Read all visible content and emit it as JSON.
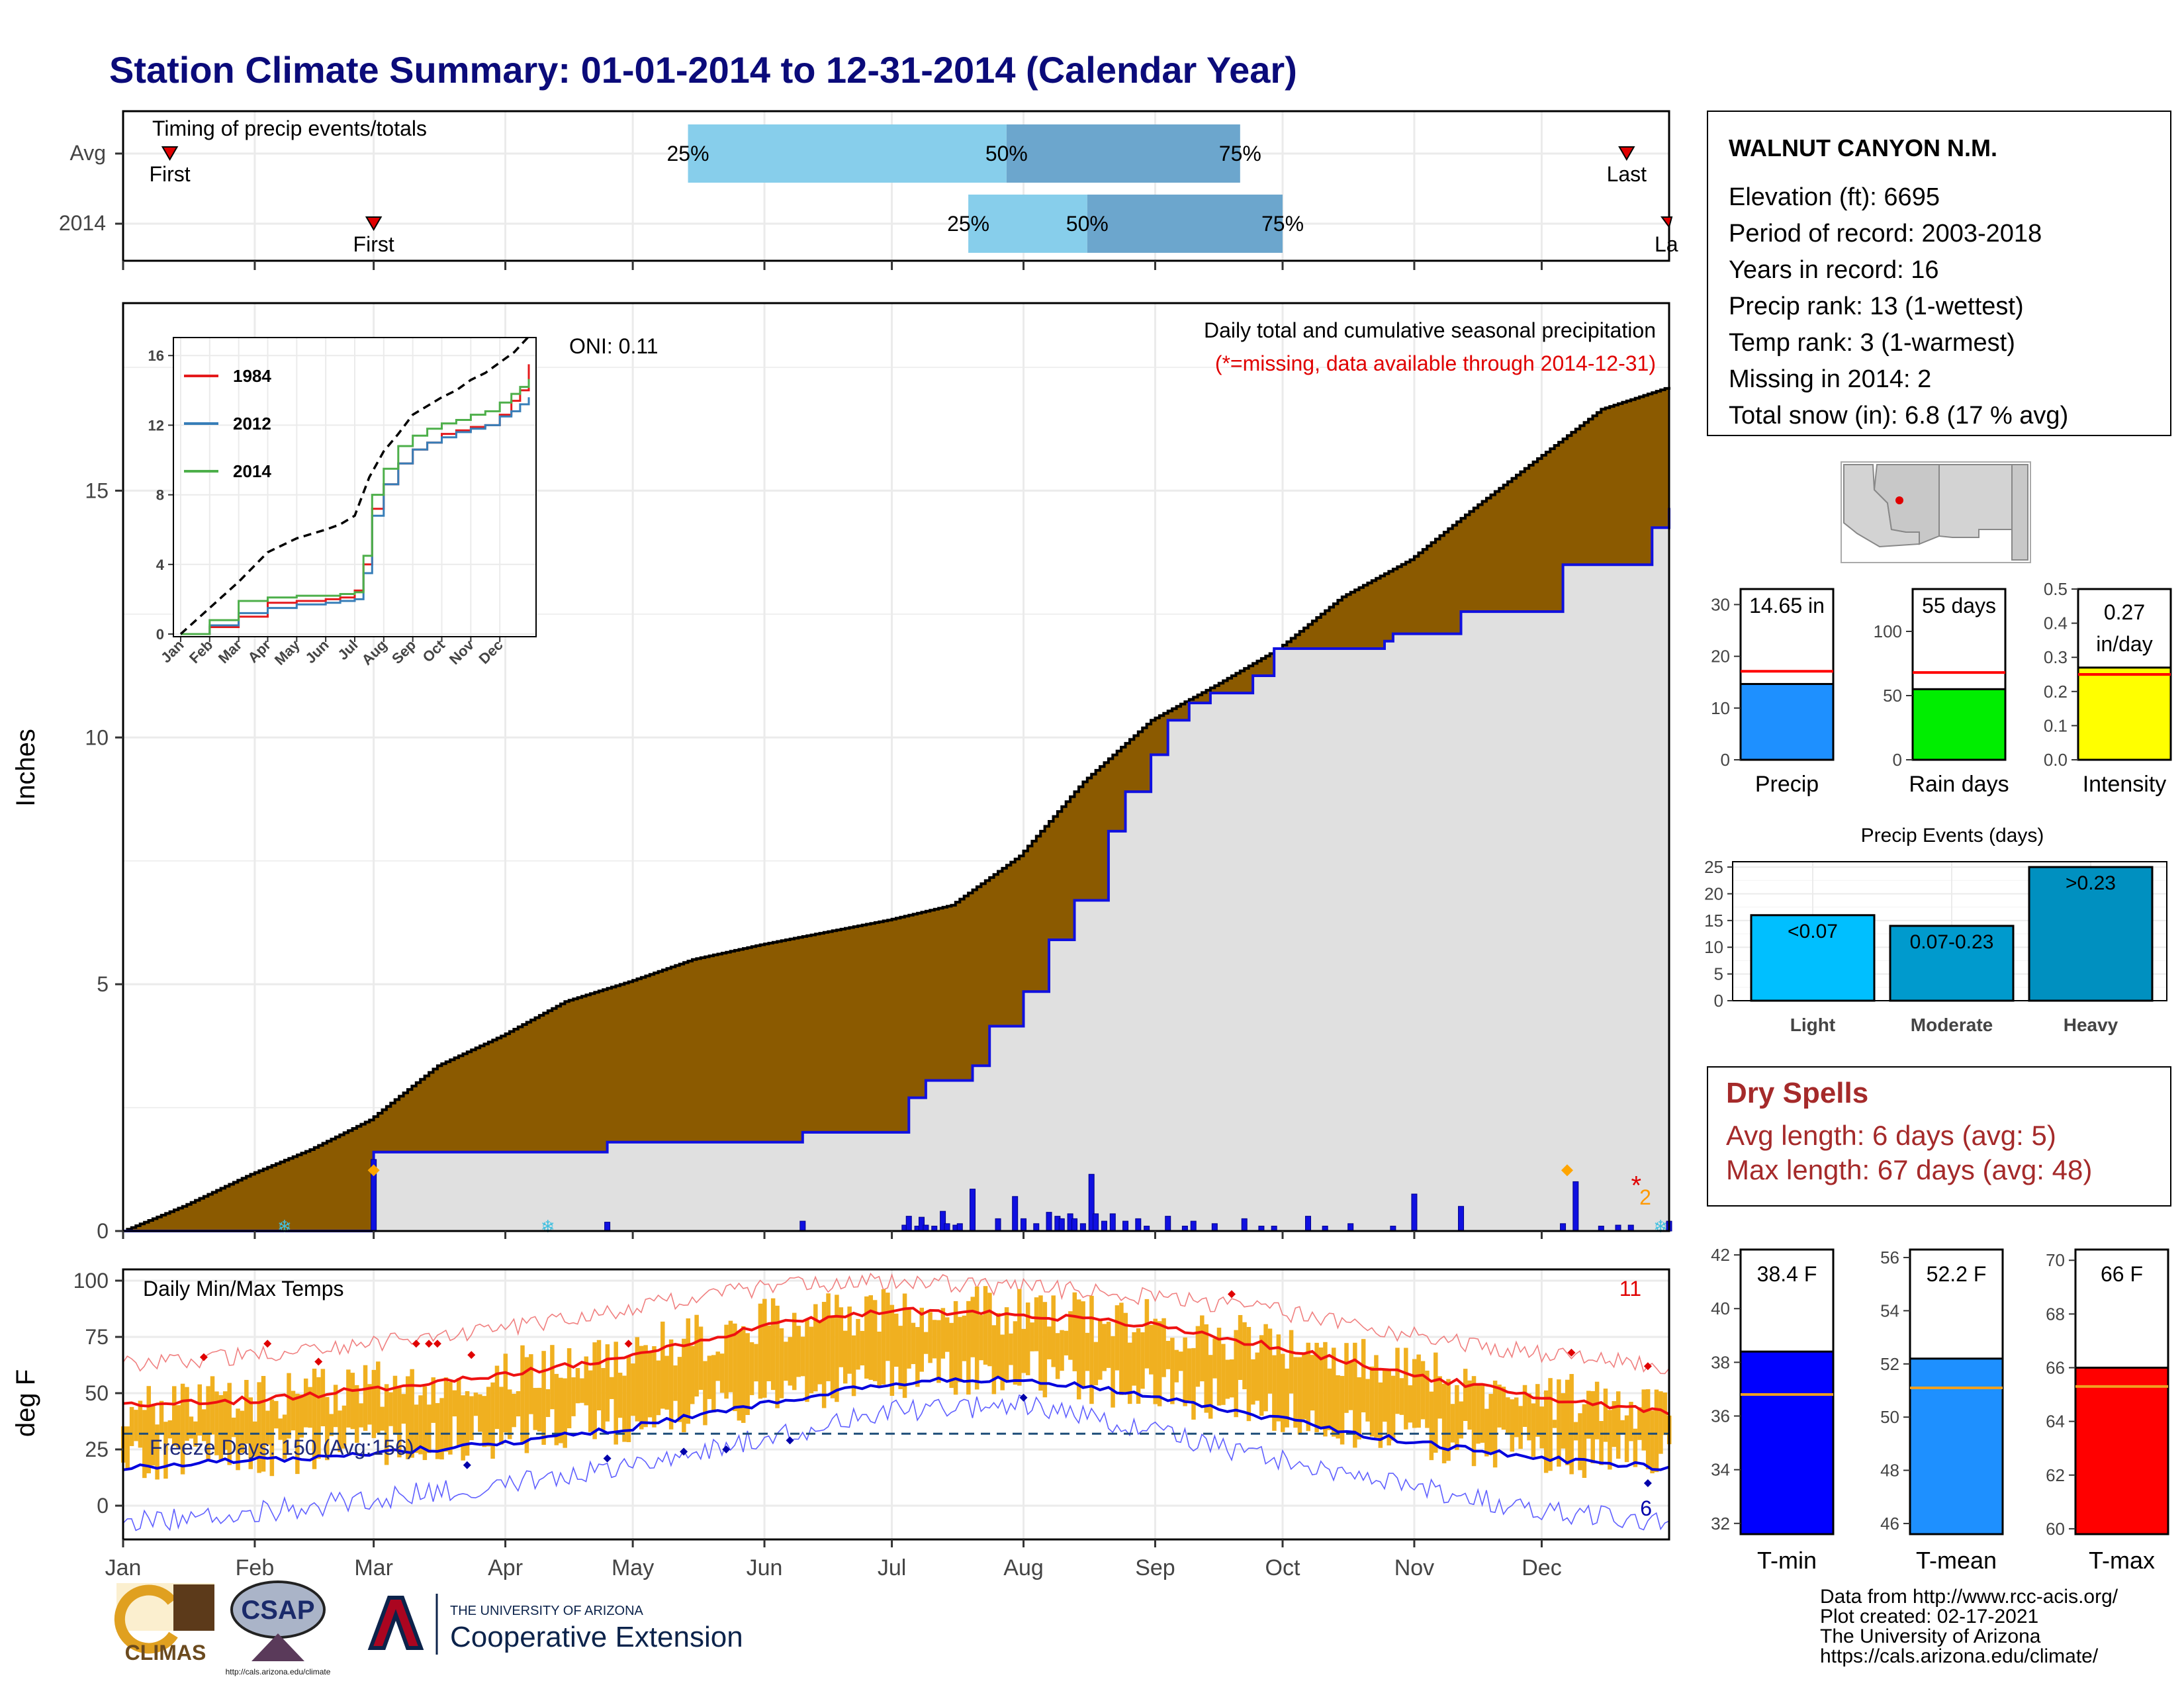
{
  "page": {
    "title": "Station Climate Summary: 01-01-2014 to 12-31-2014 (Calendar Year)"
  },
  "timing": {
    "label": "Timing of precip events/totals",
    "rows": [
      {
        "label": "Avg",
        "first_doy": 12,
        "last_doy": 355,
        "p25_doy": 134,
        "p50_doy": 209,
        "p75_doy": 264
      },
      {
        "label": "2014",
        "first_doy": 60,
        "last_doy": 365,
        "p25_doy": 200,
        "p50_doy": 228,
        "p75_doy": 274
      }
    ],
    "first_label": "First",
    "last_label": "Last",
    "last_label_clipped": "La",
    "p25_label": "25%",
    "p50_label": "50%",
    "p75_label": "75%",
    "colors": {
      "light": "#87ceeb",
      "dark": "#6ca6cd",
      "marker": "#e00000"
    }
  },
  "precip_panel": {
    "ylabel": "Inches",
    "y_ticks": [
      0,
      5,
      10,
      15
    ],
    "ylim": [
      0,
      18.8
    ],
    "oni": "ONI: 0.11",
    "title": "Daily total and cumulative seasonal precipitation",
    "missing_note": "(*=missing, data available through 2014-12-31)",
    "missing_count": "2",
    "colors": {
      "avg_fill": "#8b5a00",
      "obs_fill": "#e0e0e0",
      "obs_line": "#1010e0",
      "bars": "#1010e0",
      "missing": "#e00000",
      "missing_count": "#ff9900"
    }
  },
  "chart_data": [
    {
      "type": "area",
      "name": "cumulative_precip",
      "x_unit": "day of year",
      "ylabel": "Inches",
      "ylim": [
        0,
        18.8
      ],
      "average_cumulative": {
        "x": [
          1,
          15,
          31,
          45,
          59,
          75,
          90,
          105,
          120,
          135,
          151,
          166,
          181,
          196,
          212,
          227,
          243,
          258,
          273,
          288,
          304,
          319,
          334,
          349,
          365
        ],
        "y": [
          0,
          0.5,
          1.15,
          1.65,
          2.25,
          3.35,
          3.95,
          4.65,
          5.05,
          5.5,
          5.8,
          6.05,
          6.3,
          6.6,
          7.6,
          9.1,
          10.35,
          11.05,
          11.8,
          12.85,
          13.6,
          14.65,
          15.65,
          16.65,
          17.1
        ]
      },
      "observed_2014_cumulative": {
        "x": [
          1,
          59,
          60,
          114,
          115,
          160,
          161,
          181,
          186,
          190,
          201,
          205,
          213,
          219,
          225,
          233,
          237,
          243,
          247,
          252,
          257,
          267,
          272,
          298,
          300,
          316,
          340,
          361,
          365
        ],
        "y": [
          0,
          0,
          1.6,
          1.6,
          1.8,
          1.8,
          2.0,
          2.0,
          2.7,
          3.05,
          3.35,
          4.15,
          4.85,
          5.9,
          6.7,
          8.1,
          8.9,
          9.65,
          10.35,
          10.7,
          10.9,
          11.25,
          11.8,
          11.95,
          12.1,
          12.55,
          13.5,
          14.25,
          14.65
        ]
      },
      "daily_bars": {
        "x": [
          60,
          115,
          161,
          185,
          186,
          188,
          189,
          190,
          192,
          194,
          195,
          197,
          198,
          201,
          207,
          211,
          213,
          216,
          219,
          221,
          222,
          224,
          225,
          227,
          229,
          230,
          232,
          234,
          237,
          240,
          242,
          247,
          251,
          253,
          258,
          265,
          269,
          272,
          280,
          284,
          290,
          300,
          305,
          316,
          340,
          343,
          349,
          353,
          356,
          365
        ],
        "y": [
          1.45,
          0.18,
          0.2,
          0.12,
          0.3,
          0.1,
          0.28,
          0.12,
          0.1,
          0.4,
          0.15,
          0.12,
          0.15,
          0.85,
          0.25,
          0.7,
          0.25,
          0.15,
          0.38,
          0.3,
          0.25,
          0.35,
          0.25,
          0.15,
          1.15,
          0.35,
          0.2,
          0.35,
          0.2,
          0.25,
          0.1,
          0.3,
          0.1,
          0.2,
          0.15,
          0.25,
          0.1,
          0.1,
          0.3,
          0.1,
          0.15,
          0.1,
          0.75,
          0.5,
          0.15,
          1.0,
          0.1,
          0.12,
          0.12,
          0.2
        ]
      },
      "markers": {
        "diamond_doy": [
          60,
          341
        ],
        "snow_doy": [
          39,
          101,
          363
        ],
        "missing_doy": [
          356
        ]
      }
    },
    {
      "type": "line",
      "name": "inset_cumulative",
      "x_ticks": [
        "Jan",
        "Feb",
        "Mar",
        "Apr",
        "May",
        "Jun",
        "Jul",
        "Aug",
        "Sep",
        "Oct",
        "Nov",
        "Dec"
      ],
      "y_ticks": [
        0,
        4,
        8,
        12,
        16
      ],
      "ylim": [
        0,
        16.5
      ],
      "series": [
        {
          "name": "1984",
          "color": "#e41a1c",
          "x": [
            0,
            1,
            2,
            3,
            4,
            5,
            5.5,
            6,
            6.3,
            6.6,
            7,
            7.5,
            8,
            8.5,
            9,
            9.5,
            10,
            10.5,
            11,
            11.4,
            11.7,
            12
          ],
          "y": [
            0,
            0.4,
            1.0,
            1.8,
            1.9,
            2.0,
            2.1,
            2.5,
            4.0,
            7.2,
            8.6,
            9.8,
            10.6,
            11.0,
            11.5,
            11.7,
            11.9,
            12.0,
            12.6,
            13.4,
            14.0,
            15.5
          ]
        },
        {
          "name": "2012",
          "color": "#377eb8",
          "x": [
            0,
            1,
            2,
            3,
            4,
            5,
            5.5,
            6,
            6.3,
            6.6,
            7,
            7.5,
            8,
            8.5,
            9,
            9.5,
            10,
            10.5,
            11,
            11.4,
            11.7,
            12
          ],
          "y": [
            0,
            0.5,
            1.2,
            1.5,
            1.7,
            1.8,
            1.9,
            2.0,
            3.5,
            6.8,
            8.6,
            9.8,
            10.6,
            11.0,
            11.3,
            11.6,
            11.8,
            12.0,
            12.5,
            12.8,
            13.2,
            13.6
          ]
        },
        {
          "name": "2014",
          "color": "#4daf4a",
          "x": [
            0,
            1,
            2,
            3,
            4,
            5,
            5.5,
            6,
            6.3,
            6.6,
            7,
            7.5,
            8,
            8.5,
            9,
            9.5,
            10,
            10.5,
            11,
            11.4,
            11.7,
            12
          ],
          "y": [
            0,
            0.8,
            1.9,
            2.1,
            2.2,
            2.2,
            2.3,
            2.4,
            4.5,
            8.0,
            9.5,
            10.8,
            11.4,
            11.8,
            12.1,
            12.3,
            12.6,
            12.8,
            13.3,
            13.8,
            14.2,
            14.65
          ]
        },
        {
          "name": "Average",
          "color": "#000000",
          "dashed": true,
          "x": [
            0,
            1,
            2,
            3,
            4,
            5,
            5.5,
            6,
            6.5,
            7,
            7.5,
            8,
            8.5,
            9,
            9.5,
            10,
            10.5,
            11,
            11.5,
            12
          ],
          "y": [
            0,
            1.5,
            3.0,
            4.7,
            5.5,
            6.0,
            6.3,
            6.8,
            9.0,
            10.5,
            11.5,
            12.6,
            13.1,
            13.6,
            14.0,
            14.6,
            15.0,
            15.6,
            16.2,
            17.1
          ]
        }
      ]
    },
    {
      "type": "line",
      "name": "daily_temps",
      "ylabel": "deg F",
      "y_ticks": [
        0,
        25,
        50,
        75,
        100
      ],
      "ylim": [
        -15,
        105
      ],
      "month_ticks": [
        "Jan",
        "Feb",
        "Mar",
        "Apr",
        "May",
        "Jun",
        "Jul",
        "Aug",
        "Sep",
        "Oct",
        "Nov",
        "Dec"
      ],
      "avg_max": {
        "x": [
          1,
          32,
          60,
          91,
          121,
          152,
          182,
          213,
          244,
          274,
          305,
          335,
          365
        ],
        "y": [
          45,
          47,
          52,
          58,
          67,
          80,
          87,
          85,
          80,
          70,
          58,
          48,
          42
        ]
      },
      "avg_min": {
        "x": [
          1,
          32,
          60,
          91,
          121,
          152,
          182,
          213,
          244,
          274,
          305,
          335,
          365
        ],
        "y": [
          17,
          20,
          23,
          28,
          35,
          45,
          55,
          56,
          49,
          38,
          28,
          21,
          17
        ]
      },
      "record_max": {
        "x": [
          1,
          32,
          60,
          91,
          121,
          152,
          182,
          213,
          244,
          274,
          305,
          335,
          365
        ],
        "y": [
          63,
          67,
          72,
          79,
          88,
          97,
          100,
          97,
          93,
          86,
          76,
          67,
          62
        ]
      },
      "record_min": {
        "x": [
          1,
          32,
          60,
          91,
          121,
          152,
          182,
          213,
          244,
          274,
          305,
          335,
          365
        ],
        "y": [
          -8,
          -3,
          3,
          10,
          19,
          30,
          42,
          45,
          33,
          20,
          8,
          -2,
          -8
        ]
      },
      "freeze_line": 32
    }
  ],
  "temp_panel": {
    "label": "Daily Min/Max Temps",
    "freeze_label": "Freeze Days: 150 (Avg:156)",
    "count_top": "11",
    "count_bottom": "6",
    "colors": {
      "bar": "#f0b020",
      "avg_max": "#ee1111",
      "avg_min": "#0000dd",
      "rec_max": "#f08080",
      "rec_min": "#6060ff",
      "freeze": "#1f4e79"
    }
  },
  "station": {
    "name": "WALNUT CANYON N.M.",
    "lines": [
      "Elevation (ft): 6695",
      "Period of record: 2003-2018",
      "Years in record: 16",
      "Precip rank: 13 (1-wettest)",
      "Temp rank: 3 (1-warmest)",
      "Missing in 2014: 2",
      "Total snow (in): 6.8 (17 % avg)"
    ]
  },
  "summary_bars": [
    {
      "label": "Precip",
      "value_label": "14.65 in",
      "value": 14.65,
      "avg": 17.1,
      "ymax": 33,
      "ticks": [
        0,
        10,
        20,
        30
      ],
      "color": "#1e90ff"
    },
    {
      "label": "Rain days",
      "value_label": "55 days",
      "value": 55,
      "avg": 68,
      "ymax": 133,
      "ticks": [
        0,
        50,
        100
      ],
      "color": "#00ee00"
    },
    {
      "label": "Intensity",
      "value_label": "0.27 in/day",
      "value_line1": "0.27",
      "value_line2": "in/day",
      "value": 0.27,
      "avg": 0.25,
      "ymax": 0.5,
      "ticks": [
        0.0,
        0.1,
        0.2,
        0.3,
        0.4,
        0.5
      ],
      "color": "#ffff00"
    }
  ],
  "precip_events": {
    "title": "Precip Events (days)",
    "ticks": [
      0,
      5,
      10,
      15,
      20,
      25
    ],
    "ymax": 26,
    "bars": [
      {
        "category": "Light",
        "label": "<0.07",
        "value": 16
      },
      {
        "category": "Moderate",
        "label": "0.07-0.23",
        "value": 14
      },
      {
        "category": "Heavy",
        "label": ">0.23",
        "value": 25
      }
    ],
    "colors": [
      "#00bfff",
      "#009acd",
      "#0090c0"
    ]
  },
  "dry_spells": {
    "title": "Dry Spells",
    "avg_line": "Avg length: 6 days (avg: 5)",
    "max_line": "Max length: 67 days (avg: 48)",
    "color": "#a52a2a"
  },
  "temp_summary": [
    {
      "label": "T-min",
      "value_label": "38.4 F",
      "value": 38.4,
      "avg": 36.8,
      "ymin": 31.6,
      "ymax": 42.2,
      "ticks": [
        32,
        34,
        36,
        38,
        40,
        42
      ],
      "color": "#0000ff"
    },
    {
      "label": "T-mean",
      "value_label": "52.2 F",
      "value": 52.2,
      "avg": 51.1,
      "ymin": 45.6,
      "ymax": 56.3,
      "ticks": [
        46,
        48,
        50,
        52,
        54,
        56
      ],
      "color": "#1e90ff"
    },
    {
      "label": "T-max",
      "value_label": "66 F",
      "value": 66.0,
      "avg": 65.3,
      "ymin": 59.8,
      "ymax": 70.4,
      "ticks": [
        60,
        62,
        64,
        66,
        68,
        70
      ],
      "color": "#ff0000"
    }
  ],
  "footer": {
    "lines": [
      "Data from http://www.rcc-acis.org/",
      "Plot created: 02-17-2021",
      "The University of Arizona",
      "https://cals.arizona.edu/climate/"
    ],
    "logos": {
      "climas": "CLIMAS",
      "csap": "CSAP",
      "csap_url": "http://cals.arizona.edu/climate",
      "ua_small": "THE UNIVERSITY OF ARIZONA",
      "ua_big": "Cooperative Extension"
    }
  },
  "months": [
    "Jan",
    "Feb",
    "Mar",
    "Apr",
    "May",
    "Jun",
    "Jul",
    "Aug",
    "Sep",
    "Oct",
    "Nov",
    "Dec"
  ]
}
